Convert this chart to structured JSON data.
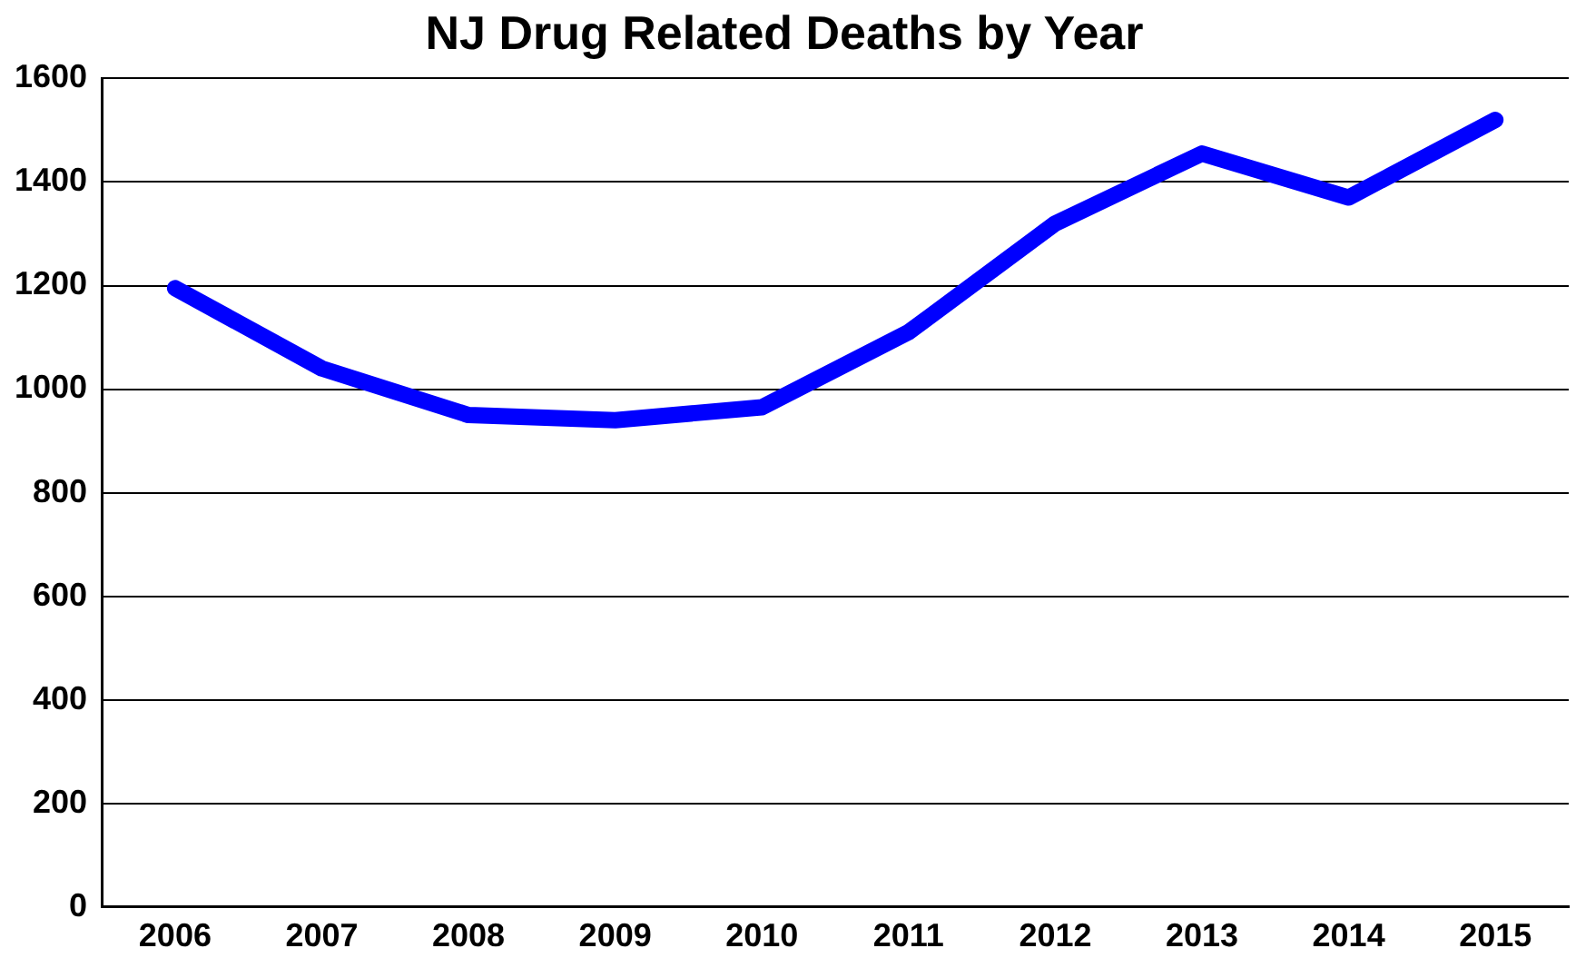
{
  "chart_data": {
    "type": "line",
    "title": "NJ Drug Related Deaths by Year",
    "categories": [
      "2006",
      "2007",
      "2008",
      "2009",
      "2010",
      "2011",
      "2012",
      "2013",
      "2014",
      "2015"
    ],
    "series": [
      {
        "color": "#0000ff",
        "values": [
          1195,
          1040,
          950,
          940,
          965,
          1110,
          1320,
          1455,
          1370,
          1520
        ]
      }
    ],
    "ylim": [
      0,
      1600
    ],
    "yticks": [
      0,
      200,
      400,
      600,
      800,
      1000,
      1200,
      1400,
      1600
    ],
    "grid": "y",
    "legend": false,
    "marker": "none",
    "line_style": "solid"
  }
}
